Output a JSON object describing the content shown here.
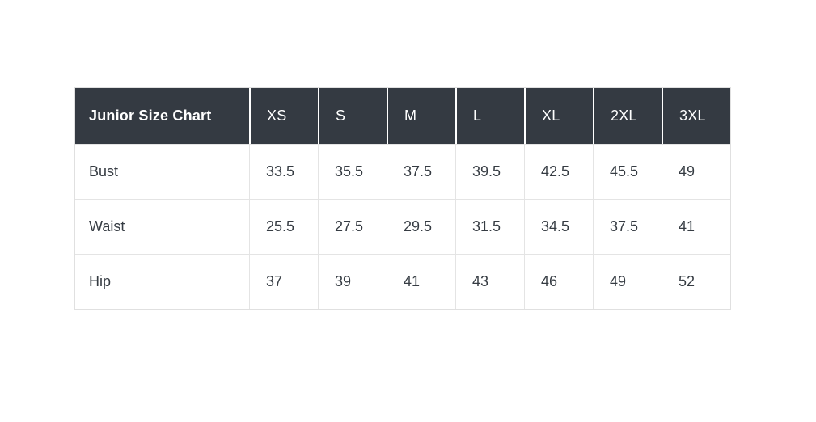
{
  "page": {
    "background_color": "#ffffff"
  },
  "colors": {
    "header_background": "#343a42",
    "header_text": "#ffffff",
    "body_text": "#363c43",
    "cell_border": "#e4e4e4",
    "outer_border": "#e0e0e0"
  },
  "table": {
    "title": "Junior Size Chart",
    "size_headers": [
      "XS",
      "S",
      "M",
      "L",
      "XL",
      "2XL",
      "3XL"
    ],
    "rows": [
      {
        "label": "Bust",
        "values": [
          "33.5",
          "35.5",
          "37.5",
          "39.5",
          "42.5",
          "45.5",
          "49"
        ]
      },
      {
        "label": "Waist",
        "values": [
          "25.5",
          "27.5",
          "29.5",
          "31.5",
          "34.5",
          "37.5",
          "41"
        ]
      },
      {
        "label": "Hip",
        "values": [
          "37",
          "39",
          "41",
          "43",
          "46",
          "49",
          "52"
        ]
      }
    ]
  },
  "chart_data": {
    "type": "table",
    "title": "Junior Size Chart",
    "columns": [
      "Junior Size Chart",
      "XS",
      "S",
      "M",
      "L",
      "XL",
      "2XL",
      "3XL"
    ],
    "rows": [
      [
        "Bust",
        33.5,
        35.5,
        37.5,
        39.5,
        42.5,
        45.5,
        49
      ],
      [
        "Waist",
        25.5,
        27.5,
        29.5,
        31.5,
        34.5,
        37.5,
        41
      ],
      [
        "Hip",
        37,
        39,
        41,
        43,
        46,
        49,
        52
      ]
    ]
  }
}
